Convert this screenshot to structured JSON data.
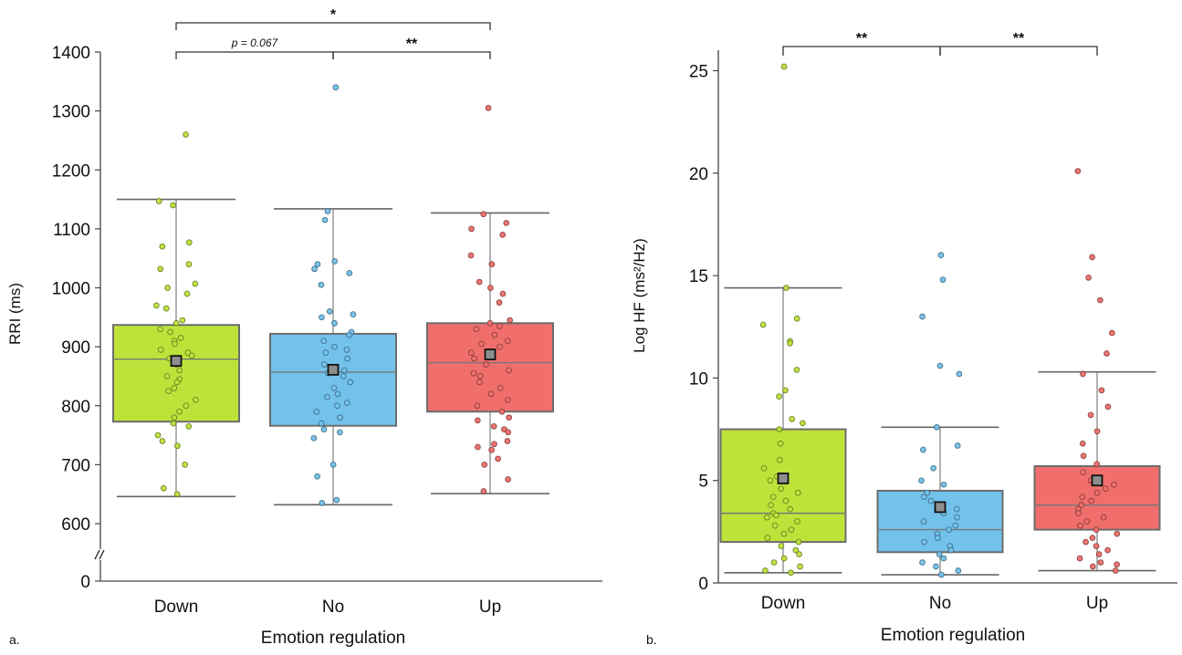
{
  "chart_data": [
    {
      "panel_label": "a.",
      "type": "box",
      "xlabel": "Emotion regulation",
      "ylabel": "RRI (ms)",
      "axis_break": true,
      "ylim": [
        550,
        1400
      ],
      "yticks": [
        0,
        600,
        700,
        800,
        900,
        1000,
        1100,
        1200,
        1300,
        1400
      ],
      "yticks_labels": [
        "0",
        "600",
        "700",
        "800",
        "900",
        "1000",
        "1100",
        "1200",
        "1300",
        "1400"
      ],
      "categories": [
        "Down",
        "No",
        "Up"
      ],
      "colors": [
        "#bde33b",
        "#72c2ec",
        "#f06f6c"
      ],
      "boxes": [
        {
          "category": "Down",
          "whisker_low": 646,
          "q1": 773,
          "median": 879,
          "q3": 937,
          "whisker_high": 1150,
          "mean": 876
        },
        {
          "category": "No",
          "whisker_low": 632,
          "q1": 766,
          "median": 857,
          "q3": 922,
          "whisker_high": 1134,
          "mean": 861
        },
        {
          "category": "Up",
          "whisker_low": 651,
          "q1": 790,
          "median": 873,
          "q3": 940,
          "whisker_high": 1127,
          "mean": 887
        }
      ],
      "points": [
        [
          1260,
          1147,
          1140,
          1077,
          1070,
          1040,
          1032,
          1007,
          1000,
          990,
          970,
          965,
          945,
          940,
          930,
          925,
          915,
          910,
          905,
          895,
          890,
          885,
          880,
          870,
          860,
          850,
          845,
          840,
          830,
          825,
          810,
          800,
          790,
          780,
          770,
          765,
          750,
          740,
          732,
          700,
          660,
          650
        ],
        [
          1340,
          1130,
          1115,
          1045,
          1040,
          1032,
          1025,
          1005,
          960,
          955,
          950,
          940,
          925,
          920,
          910,
          900,
          895,
          890,
          880,
          870,
          860,
          855,
          850,
          840,
          830,
          820,
          815,
          805,
          800,
          790,
          780,
          770,
          760,
          755,
          745,
          700,
          680,
          640,
          635
        ],
        [
          1305,
          1125,
          1110,
          1100,
          1090,
          1055,
          1040,
          1010,
          1000,
          990,
          975,
          945,
          940,
          935,
          930,
          920,
          910,
          905,
          900,
          890,
          880,
          870,
          860,
          855,
          850,
          840,
          830,
          820,
          810,
          800,
          790,
          780,
          775,
          765,
          760,
          755,
          740,
          735,
          730,
          725,
          710,
          700,
          675,
          655
        ]
      ],
      "significance": [
        {
          "from": "Down",
          "to": "Up",
          "label": "*"
        },
        {
          "from": "Down",
          "to": "No",
          "label": "p = 0.067"
        },
        {
          "from": "No",
          "to": "Up",
          "label": "**"
        }
      ]
    },
    {
      "panel_label": "b.",
      "type": "box",
      "xlabel": "Emotion regulation",
      "ylabel": "Log HF (ms²/Hz)",
      "ylim": [
        0,
        26
      ],
      "yticks": [
        0,
        5,
        10,
        15,
        20,
        25
      ],
      "yticks_labels": [
        "0",
        "5",
        "10",
        "15",
        "20",
        "25"
      ],
      "categories": [
        "Down",
        "No",
        "Up"
      ],
      "colors": [
        "#bde33b",
        "#72c2ec",
        "#f06f6c"
      ],
      "boxes": [
        {
          "category": "Down",
          "whisker_low": 0.5,
          "q1": 2.0,
          "median": 3.4,
          "q3": 7.5,
          "whisker_high": 14.4,
          "mean": 5.1
        },
        {
          "category": "No",
          "whisker_low": 0.4,
          "q1": 1.5,
          "median": 2.6,
          "q3": 4.5,
          "whisker_high": 7.6,
          "mean": 3.7
        },
        {
          "category": "Up",
          "whisker_low": 0.6,
          "q1": 2.6,
          "median": 3.8,
          "q3": 5.7,
          "whisker_high": 10.3,
          "mean": 5.0
        }
      ],
      "points": [
        [
          25.2,
          14.4,
          12.9,
          12.6,
          11.8,
          11.7,
          10.4,
          9.4,
          9.1,
          8.0,
          7.8,
          7.5,
          6.8,
          6.0,
          5.6,
          5.2,
          5.0,
          4.6,
          4.4,
          4.2,
          4.0,
          3.8,
          3.6,
          3.4,
          3.3,
          3.2,
          3.0,
          2.8,
          2.6,
          2.4,
          2.2,
          2.0,
          1.8,
          1.6,
          1.4,
          1.2,
          1.0,
          0.8,
          0.6,
          0.5
        ],
        [
          16.0,
          14.8,
          13.0,
          10.6,
          10.2,
          7.6,
          6.7,
          6.5,
          5.6,
          5.0,
          4.8,
          4.4,
          4.2,
          4.0,
          3.8,
          3.6,
          3.4,
          3.2,
          3.0,
          2.8,
          2.6,
          2.4,
          2.2,
          2.0,
          1.8,
          1.6,
          1.4,
          1.2,
          1.0,
          0.8,
          0.6,
          0.4
        ],
        [
          20.1,
          15.9,
          14.9,
          13.8,
          12.2,
          11.2,
          10.2,
          9.4,
          8.6,
          8.2,
          7.4,
          6.8,
          6.2,
          5.8,
          5.4,
          5.0,
          4.8,
          4.6,
          4.4,
          4.2,
          4.0,
          3.8,
          3.6,
          3.4,
          3.2,
          3.0,
          2.8,
          2.6,
          2.4,
          2.2,
          2.0,
          1.8,
          1.6,
          1.4,
          1.2,
          1.0,
          0.9,
          0.8,
          0.6
        ]
      ],
      "significance": [
        {
          "from": "Down",
          "to": "No",
          "label": "**"
        },
        {
          "from": "No",
          "to": "Up",
          "label": "**"
        }
      ]
    }
  ]
}
